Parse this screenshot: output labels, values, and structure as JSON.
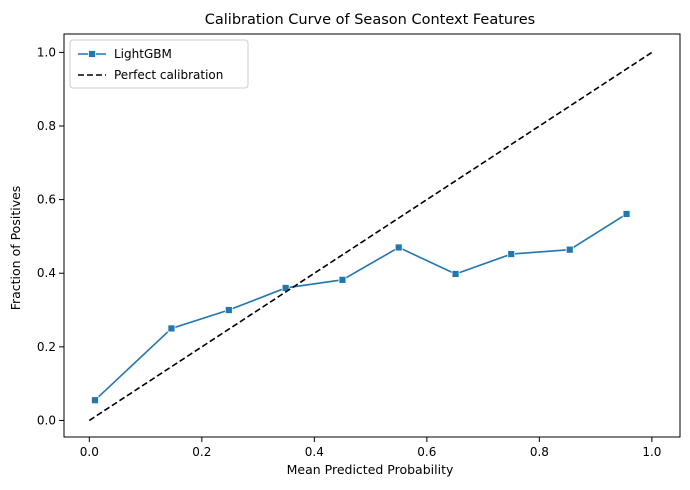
{
  "chart_data": {
    "type": "line",
    "title": "Calibration Curve of Season Context Features",
    "xlabel": "Mean Predicted Probability",
    "ylabel": "Fraction of Positives",
    "xlim": [
      -0.045,
      1.05
    ],
    "ylim": [
      -0.045,
      1.05
    ],
    "xticks": [
      "0.0",
      "0.2",
      "0.4",
      "0.6",
      "0.8",
      "1.0"
    ],
    "yticks": [
      "0.0",
      "0.2",
      "0.4",
      "0.6",
      "0.8",
      "1.0"
    ],
    "xtick_values": [
      0,
      0.2,
      0.4,
      0.6,
      0.8,
      1.0
    ],
    "ytick_values": [
      0,
      0.2,
      0.4,
      0.6,
      0.8,
      1.0
    ],
    "grid": false,
    "legend_position": "top-left",
    "series": [
      {
        "name": "LightGBM",
        "color": "#1f77b4",
        "marker": "square",
        "x": [
          0.01,
          0.146,
          0.248,
          0.349,
          0.45,
          0.55,
          0.651,
          0.75,
          0.854,
          0.955
        ],
        "y": [
          0.055,
          0.25,
          0.3,
          0.36,
          0.382,
          0.47,
          0.398,
          0.452,
          0.464,
          0.561
        ]
      },
      {
        "name": "Perfect calibration",
        "color": "#000000",
        "style": "dashed",
        "x": [
          0,
          1
        ],
        "y": [
          0,
          1
        ]
      }
    ]
  }
}
